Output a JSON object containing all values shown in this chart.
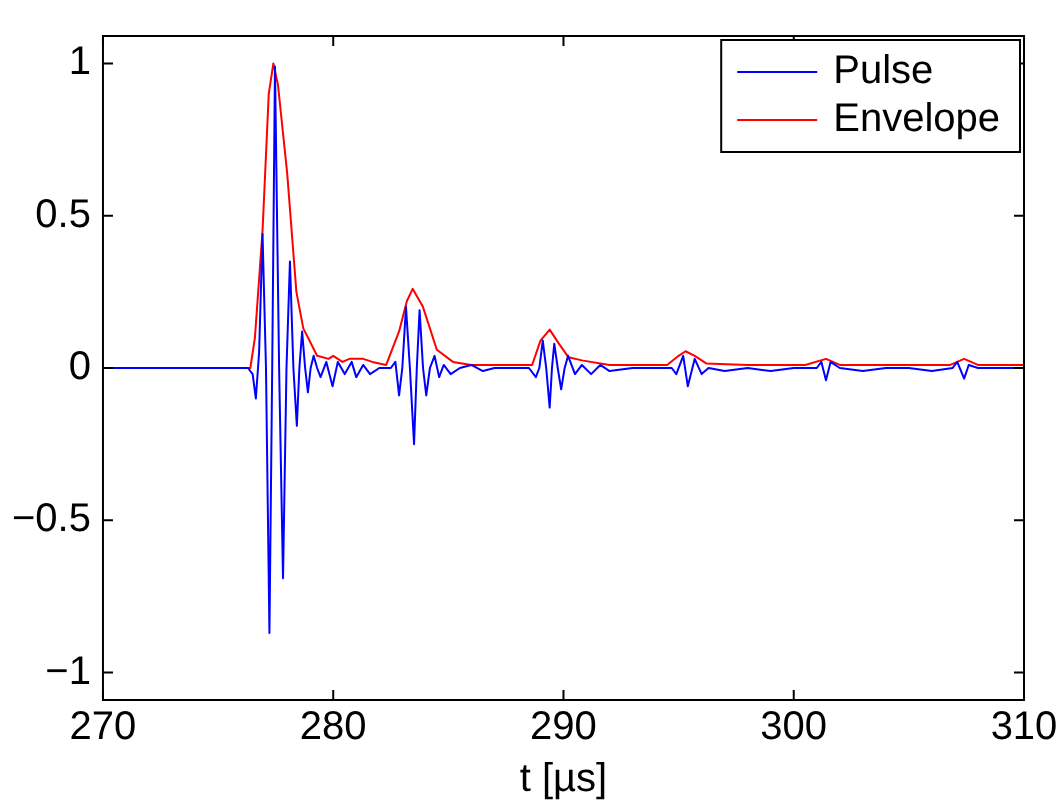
{
  "chart_data": {
    "type": "line",
    "xlabel": "t [µs]",
    "xlim": [
      270,
      310
    ],
    "xticks": [
      270,
      280,
      290,
      300,
      310
    ],
    "ylim": [
      -1.09,
      1.09
    ],
    "yticks": [
      -1,
      -0.5,
      0,
      0.5,
      1
    ],
    "grid": false,
    "legend": "top right",
    "marker": "none",
    "line_style": "solid",
    "series": [
      {
        "name": "Pulse",
        "color": "#0000ff",
        "x": [
          270,
          276.3,
          276.5,
          276.64,
          276.78,
          276.93,
          277.08,
          277.23,
          277.35,
          277.47,
          277.65,
          277.82,
          277.97,
          278.12,
          278.27,
          278.42,
          278.53,
          278.65,
          278.78,
          278.9,
          279.02,
          279.15,
          279.3,
          279.45,
          279.7,
          279.97,
          280.2,
          280.5,
          280.8,
          281.0,
          281.3,
          281.6,
          282.0,
          282.5,
          282.7,
          282.86,
          283.0,
          283.16,
          283.33,
          283.51,
          283.63,
          283.75,
          283.9,
          284.04,
          284.2,
          284.4,
          284.6,
          284.8,
          285.1,
          285.5,
          286,
          286.5,
          287,
          288.5,
          288.8,
          288.95,
          289.1,
          289.25,
          289.4,
          289.5,
          289.6,
          289.75,
          289.9,
          290.05,
          290.2,
          290.5,
          290.8,
          291.2,
          291.6,
          292,
          293,
          294.7,
          294.9,
          295.2,
          295.4,
          295.7,
          296,
          296.3,
          297,
          298,
          299,
          300,
          301,
          301.2,
          301.4,
          301.6,
          302,
          303,
          304,
          305,
          306,
          306.9,
          307.1,
          307.4,
          307.6,
          308,
          309,
          310
        ],
        "values": [
          0,
          0,
          -0.02,
          -0.1,
          0.05,
          0.44,
          0,
          -0.87,
          0,
          0.99,
          0,
          -0.69,
          0,
          0.35,
          0,
          -0.19,
          0,
          0.12,
          0,
          -0.08,
          0,
          0.04,
          0,
          -0.03,
          0.02,
          -0.06,
          0.02,
          -0.02,
          0.02,
          -0.03,
          0.01,
          -0.02,
          0,
          0,
          0.02,
          -0.09,
          0,
          0.2,
          0,
          -0.25,
          0,
          0.19,
          0,
          -0.09,
          0,
          0.04,
          -0.03,
          0.01,
          -0.02,
          0,
          0.01,
          -0.01,
          0,
          0,
          -0.03,
          0,
          0.09,
          0,
          -0.13,
          0,
          0.08,
          0,
          -0.07,
          0,
          0.04,
          -0.02,
          0.01,
          -0.02,
          0.01,
          -0.01,
          0,
          0,
          -0.02,
          0.04,
          -0.06,
          0.03,
          -0.02,
          0,
          -0.01,
          0,
          -0.01,
          0,
          0,
          0.02,
          -0.04,
          0.02,
          0,
          -0.01,
          0,
          0,
          -0.01,
          0,
          0.02,
          -0.035,
          0.01,
          0,
          0,
          0
        ]
      },
      {
        "name": "Envelope",
        "color": "#ff0000",
        "x": [
          270,
          276.4,
          276.6,
          276.93,
          277.2,
          277.4,
          277.6,
          278,
          278.4,
          278.7,
          279.3,
          279.8,
          280,
          280.4,
          280.7,
          281.3,
          281.7,
          282.3,
          282.86,
          283.2,
          283.45,
          283.9,
          284.5,
          285.2,
          286,
          288.3,
          288.64,
          289,
          289.4,
          289.8,
          290.22,
          290.8,
          292,
          294.5,
          295,
          295.3,
          295.7,
          296.2,
          298,
          300.5,
          301.4,
          302,
          306.8,
          307.4,
          308,
          310
        ],
        "values": [
          0,
          0,
          0.1,
          0.45,
          0.9,
          1.0,
          0.93,
          0.64,
          0.25,
          0.13,
          0.04,
          0.03,
          0.04,
          0.02,
          0.03,
          0.03,
          0.02,
          0.01,
          0.12,
          0.22,
          0.26,
          0.2,
          0.06,
          0.02,
          0.01,
          0.01,
          0.01,
          0.09,
          0.126,
          0.08,
          0.035,
          0.025,
          0.01,
          0.01,
          0.04,
          0.055,
          0.04,
          0.015,
          0.01,
          0.01,
          0.03,
          0.01,
          0.01,
          0.03,
          0.01,
          0.01
        ]
      }
    ]
  }
}
